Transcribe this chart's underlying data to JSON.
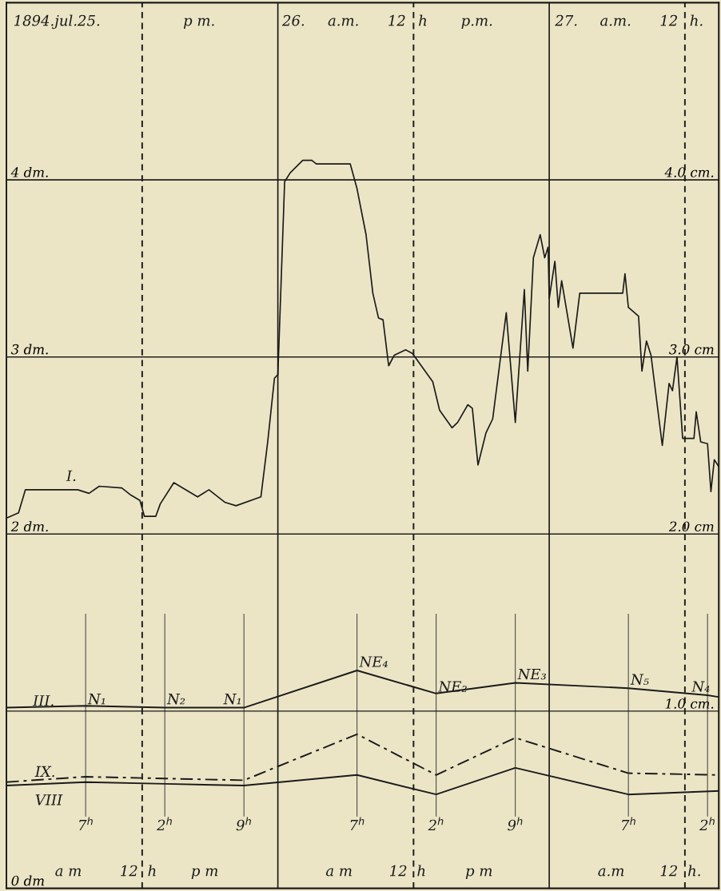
{
  "chart_data": {
    "type": "line",
    "xlim": [
      "1894-07-25T00:00",
      "1894-07-27T15:00"
    ],
    "ylim": [
      0,
      5
    ],
    "y2lim": [
      0,
      5
    ],
    "grid": "y",
    "xticks": [
      {
        "value": "1894-07-25T07:00",
        "label": "7$^{h}$"
      },
      {
        "value": "1894-07-25T14:00",
        "label": "2$^{h}$"
      },
      {
        "value": "1894-07-25T21:00",
        "label": "9$^{h}$"
      },
      {
        "value": "1894-07-26T07:00",
        "label": "7$^{h}$"
      },
      {
        "value": "1894-07-26T14:00",
        "label": "2$^{h}$"
      },
      {
        "value": "1894-07-26T21:00",
        "label": "9$^{h}$"
      },
      {
        "value": "1894-07-27T07:00",
        "label": "7$^{h}$"
      },
      {
        "value": "1894-07-27T14:00",
        "label": "2$^{h}$"
      }
    ],
    "yticks": [
      {
        "value": 0,
        "label": "0 dm"
      },
      {
        "value": 2,
        "label": "2 dm."
      },
      {
        "value": 3,
        "label": "3 dm."
      },
      {
        "value": 4,
        "label": "4 dm."
      }
    ],
    "y2ticks": [
      {
        "value": 1,
        "label": "1.0 cm."
      },
      {
        "value": 2,
        "label": "2.0 cm"
      },
      {
        "value": 3,
        "label": "3.0 cm"
      },
      {
        "value": 4,
        "label": "4.0 cm."
      }
    ],
    "ref_lines": [
      {
        "axis": "x",
        "value": "1894-07-25T12:00",
        "color": "#1a1a1a",
        "line_style": "dashed"
      },
      {
        "axis": "x",
        "value": "1894-07-26T00:00",
        "color": "#1a1a1a",
        "line_style": "solid"
      },
      {
        "axis": "x",
        "value": "1894-07-26T12:00",
        "color": "#1a1a1a",
        "line_style": "dashed"
      },
      {
        "axis": "x",
        "value": "1894-07-27T00:00",
        "color": "#1a1a1a",
        "line_style": "solid"
      },
      {
        "axis": "x",
        "value": "1894-07-27T12:00",
        "color": "#1a1a1a",
        "line_style": "dashed"
      }
    ],
    "series": [
      {
        "color": "#1a1a1a",
        "line_style": "solid",
        "x": [
          "1894-07-25T00:00",
          "1894-07-25T01:04",
          "1894-07-25T01:40",
          "1894-07-25T06:18",
          "1894-07-25T07:18",
          "1894-07-25T08:12",
          "1894-07-25T10:12",
          "1894-07-25T11:00",
          "1894-07-25T11:48",
          "1894-07-25T12:12",
          "1894-07-25T13:12",
          "1894-07-25T13:36",
          "1894-07-25T14:48",
          "1894-07-25T15:36",
          "1894-07-25T16:54",
          "1894-07-25T17:54",
          "1894-07-25T19:18",
          "1894-07-25T20:18",
          "1894-07-25T22:30",
          "1894-07-25T23:06",
          "1894-07-25T23:42",
          "1894-07-26T00:00",
          "1894-07-26T00:36",
          "1894-07-26T01:06",
          "1894-07-26T02:12",
          "1894-07-26T03:00",
          "1894-07-26T03:24",
          "1894-07-26T06:24",
          "1894-07-26T07:00",
          "1894-07-26T07:48",
          "1894-07-26T08:24",
          "1894-07-26T08:54",
          "1894-07-26T09:18",
          "1894-07-26T09:48",
          "1894-07-26T10:18",
          "1894-07-26T11:18",
          "1894-07-26T11:54",
          "1894-07-26T13:42",
          "1894-07-26T14:18",
          "1894-07-26T15:24",
          "1894-07-26T15:54",
          "1894-07-26T16:48",
          "1894-07-26T17:12",
          "1894-07-26T17:42",
          "1894-07-26T18:24",
          "1894-07-26T19:00",
          "1894-07-26T20:12",
          "1894-07-26T21:00",
          "1894-07-26T21:48",
          "1894-07-26T22:06",
          "1894-07-26T22:36",
          "1894-07-26T23:12",
          "1894-07-26T23:36",
          "1894-07-26T23:54",
          "1894-07-27T00:00",
          "1894-07-27T00:30",
          "1894-07-27T00:48",
          "1894-07-27T01:06",
          "1894-07-27T02:06",
          "1894-07-27T02:42",
          "1894-07-27T06:30",
          "1894-07-27T06:42",
          "1894-07-27T07:00",
          "1894-07-27T07:54",
          "1894-07-27T08:12",
          "1894-07-27T08:36",
          "1894-07-27T09:00",
          "1894-07-27T10:00",
          "1894-07-27T10:36",
          "1894-07-27T10:54",
          "1894-07-27T11:18",
          "1894-07-27T11:48",
          "1894-07-27T12:48",
          "1894-07-27T13:00",
          "1894-07-27T13:24",
          "1894-07-27T14:00",
          "1894-07-27T14:18",
          "1894-07-27T14:36",
          "1894-07-27T15:00"
        ],
        "values": [
          2.09,
          2.12,
          2.25,
          2.25,
          2.23,
          2.27,
          2.26,
          2.22,
          2.19,
          2.1,
          2.1,
          2.17,
          2.29,
          2.26,
          2.21,
          2.25,
          2.18,
          2.16,
          2.21,
          2.52,
          2.88,
          2.9,
          3.99,
          4.04,
          4.11,
          4.11,
          4.09,
          4.09,
          3.95,
          3.69,
          3.36,
          3.22,
          3.21,
          2.95,
          3.01,
          3.04,
          3.02,
          2.86,
          2.7,
          2.6,
          2.63,
          2.73,
          2.71,
          2.39,
          2.57,
          2.65,
          3.25,
          2.63,
          3.38,
          2.92,
          3.56,
          3.69,
          3.56,
          3.62,
          3.33,
          3.54,
          3.28,
          3.43,
          3.05,
          3.36,
          3.36,
          3.47,
          3.28,
          3.23,
          2.92,
          3.09,
          3.01,
          2.5,
          2.85,
          2.81,
          3.0,
          2.54,
          2.54,
          2.69,
          2.52,
          2.51,
          2.24,
          2.42,
          2.38
        ]
      },
      {
        "axis": "y2",
        "color": "#1a1a1a",
        "line_style": "solid",
        "x": [
          "1894-07-25T00:00",
          "1894-07-25T07:00",
          "1894-07-25T14:00",
          "1894-07-25T21:00",
          "1894-07-26T07:00",
          "1894-07-26T14:00",
          "1894-07-26T21:00",
          "1894-07-27T07:00",
          "1894-07-27T14:00",
          "1894-07-27T15:00"
        ],
        "values": [
          1.02,
          1.03,
          1.02,
          1.02,
          1.23,
          1.1,
          1.16,
          1.13,
          1.09,
          1.08
        ]
      },
      {
        "axis": "y2",
        "color": "#1a1a1a",
        "line_style": "dashdot",
        "x": [
          "1894-07-25T00:00",
          "1894-07-25T07:00",
          "1894-07-25T14:00",
          "1894-07-25T21:00",
          "1894-07-26T07:00",
          "1894-07-26T14:00",
          "1894-07-26T21:00",
          "1894-07-27T07:00",
          "1894-07-27T15:00"
        ],
        "values": [
          0.6,
          0.63,
          0.62,
          0.61,
          0.87,
          0.64,
          0.85,
          0.65,
          0.64
        ]
      },
      {
        "axis": "y2",
        "color": "#1a1a1a",
        "line_style": "solid",
        "x": [
          "1894-07-25T00:00",
          "1894-07-25T07:00",
          "1894-07-25T14:00",
          "1894-07-25T21:00",
          "1894-07-26T07:00",
          "1894-07-26T14:00",
          "1894-07-26T21:00",
          "1894-07-27T07:00",
          "1894-07-27T15:00"
        ],
        "values": [
          0.58,
          0.6,
          0.59,
          0.58,
          0.64,
          0.53,
          0.68,
          0.53,
          0.55
        ]
      }
    ],
    "annotations": [
      "I.",
      "III.",
      "IX.",
      "VIII",
      "1894.jul.25.",
      "p m.",
      "26.",
      "a.m.",
      "12",
      "h",
      "p.m.",
      "27.",
      "a.m.",
      "12",
      "h.",
      "a m",
      "12",
      "h",
      "p m",
      "a m",
      "12",
      "h",
      "p m",
      "a.m",
      "12",
      "h.",
      {
        "text": "N₁",
        "x": "1894-07-25T07:12",
        "y": 1.04
      },
      {
        "text": "N₂",
        "x": "1894-07-25T14:12",
        "y": 1.04
      },
      {
        "text": "N₁",
        "x": "1894-07-25T19:12",
        "y": 1.04
      },
      {
        "text": "NE₄",
        "x": "1894-07-26T07:12",
        "y": 1.25
      },
      {
        "text": "NE₂",
        "x": "1894-07-26T14:12",
        "y": 1.11
      },
      {
        "text": "NE₃",
        "x": "1894-07-26T21:12",
        "y": 1.18
      },
      {
        "text": "N₅",
        "x": "1894-07-27T07:12",
        "y": 1.15
      },
      {
        "text": "N₄",
        "x": "1894-07-27T12:36",
        "y": 1.11
      }
    ]
  }
}
